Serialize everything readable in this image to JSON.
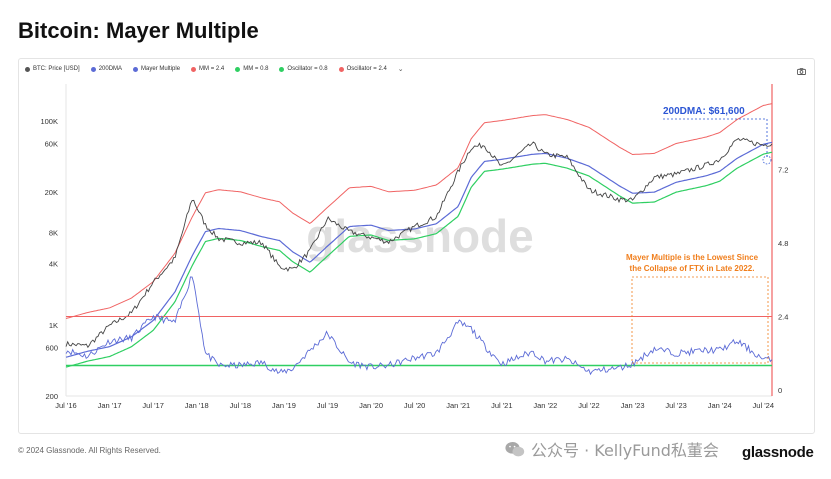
{
  "page": {
    "title": "Bitcoin: Mayer Multiple"
  },
  "legend": {
    "items": [
      {
        "label": "BTC: Price [USD]",
        "color": "#555555"
      },
      {
        "label": "200DMA",
        "color": "#5c6bd6"
      },
      {
        "label": "Mayer Multiple",
        "color": "#5c6bd6"
      },
      {
        "label": "MM = 2.4",
        "color": "#f06363"
      },
      {
        "label": "MM = 0.8",
        "color": "#2fcf62"
      },
      {
        "label": "Oscillator = 0.8",
        "color": "#2fcf62"
      },
      {
        "label": "Oscillator = 2.4",
        "color": "#f06363"
      }
    ],
    "more": "⌄"
  },
  "chart_data": {
    "type": "line",
    "x_ticks": [
      "Jul '16",
      "Jan '17",
      "Jul '17",
      "Jan '18",
      "Jul '18",
      "Jan '19",
      "Jul '19",
      "Jan '20",
      "Jul '20",
      "Jan '21",
      "Jul '21",
      "Jan '22",
      "Jul '22",
      "Jan '23",
      "Jul '23",
      "Jan '24",
      "Jul '24"
    ],
    "y_left": {
      "scale": "log",
      "ticks": [
        "100K",
        "60K",
        "20K",
        "8K",
        "4K",
        "1K",
        "600",
        "200"
      ]
    },
    "y_right": {
      "ticks": [
        "7.2",
        "4.8",
        "2.4",
        "0"
      ]
    },
    "x": [
      2016.5,
      2016.75,
      2017.0,
      2017.25,
      2017.5,
      2017.75,
      2017.95,
      2018.1,
      2018.25,
      2018.5,
      2018.75,
      2018.95,
      2019.1,
      2019.3,
      2019.5,
      2019.75,
      2020.0,
      2020.2,
      2020.5,
      2020.75,
      2021.0,
      2021.15,
      2021.3,
      2021.5,
      2021.85,
      2022.0,
      2022.25,
      2022.5,
      2022.85,
      2023.0,
      2023.25,
      2023.5,
      2023.85,
      2024.0,
      2024.2,
      2024.5,
      2024.6
    ],
    "series": [
      {
        "name": "BTC: Price [USD]",
        "axis": "left",
        "values": [
          650,
          620,
          980,
          1300,
          2600,
          4500,
          17500,
          9500,
          7000,
          6400,
          6400,
          3700,
          3500,
          5300,
          11000,
          8200,
          7200,
          6500,
          9200,
          11500,
          32000,
          55000,
          58000,
          35000,
          60000,
          47000,
          44000,
          21000,
          17000,
          16600,
          28000,
          30000,
          37000,
          42000,
          66000,
          58000,
          60500
        ]
      },
      {
        "name": "200DMA",
        "axis": "left",
        "values": [
          480,
          550,
          610,
          760,
          1100,
          2100,
          4800,
          8200,
          8800,
          8400,
          7300,
          6700,
          5200,
          4100,
          5900,
          9200,
          9500,
          8400,
          8700,
          9800,
          14500,
          28000,
          40000,
          42000,
          47000,
          48000,
          43000,
          36000,
          23000,
          19500,
          20000,
          25000,
          29000,
          32000,
          43000,
          59000,
          61600
        ]
      },
      {
        "name": "Mayer Multiple",
        "axis": "right",
        "values": [
          1.3,
          1.1,
          1.6,
          1.7,
          2.4,
          2.2,
          3.8,
          1.2,
          0.8,
          0.8,
          0.9,
          0.55,
          0.7,
          1.3,
          1.85,
          0.9,
          0.75,
          0.8,
          1.05,
          1.2,
          2.2,
          2.0,
          1.45,
          0.85,
          1.25,
          0.95,
          1.0,
          0.6,
          0.72,
          0.85,
          1.35,
          1.2,
          1.3,
          1.3,
          1.6,
          1.0,
          0.98
        ]
      },
      {
        "name": "MM = 2.4",
        "axis": "left",
        "derived_from": "200DMA",
        "multiplier": 2.4
      },
      {
        "name": "MM = 0.8",
        "axis": "left",
        "derived_from": "200DMA",
        "multiplier": 0.8
      },
      {
        "name": "Oscillator = 0.8",
        "axis": "right",
        "level": 0.8
      },
      {
        "name": "Oscillator = 2.4",
        "axis": "right",
        "level": 2.4
      }
    ],
    "annotations": [
      {
        "text": "200DMA: $61,600",
        "color": "#2b55d4"
      },
      {
        "text": "Mayer Multiple is the Lowest Since",
        "color": "#f07e1c"
      },
      {
        "text": "the Collapse of FTX in Late 2022.",
        "color": "#f07e1c"
      }
    ],
    "watermark": "glassnode"
  },
  "footer": {
    "copyright": "© 2024 Glassnode. All Rights Reserved.",
    "wechat": "公众号 · KellyFund私董会",
    "brand": "glassnode"
  }
}
